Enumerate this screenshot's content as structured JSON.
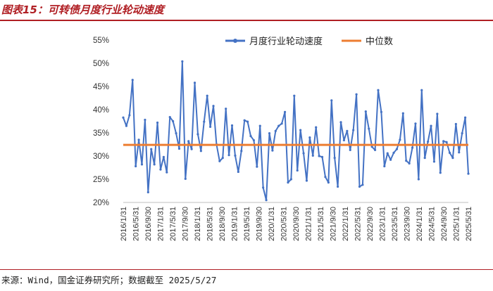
{
  "figure": {
    "title": "图表15：可转债月度行业轮动速度",
    "source": "来源：Wind，国金证券研究所；数据截至 2025/5/27"
  },
  "colors": {
    "series": "#4472c4",
    "median": "#ed7d31",
    "accent": "#b01f24"
  },
  "chart_data": {
    "type": "line",
    "title": "",
    "xlabel": "",
    "ylabel": "",
    "ylim": [
      20,
      55
    ],
    "y_ticks": [
      "55%",
      "50%",
      "45%",
      "40%",
      "35%",
      "30%",
      "25%",
      "20%"
    ],
    "y_tick_values": [
      55,
      50,
      45,
      40,
      35,
      30,
      25,
      20
    ],
    "x_tick_labels": [
      "2016/1/31",
      "2016/5/31",
      "2016/9/30",
      "2017/1/31",
      "2017/5/31",
      "2017/9/30",
      "2018/1/31",
      "2018/5/31",
      "2018/9/30",
      "2019/1/31",
      "2019/5/31",
      "2019/9/30",
      "2020/1/31",
      "2020/5/31",
      "2020/9/30",
      "2021/1/31",
      "2021/5/31",
      "2021/9/30",
      "2022/1/31",
      "2022/5/31",
      "2022/9/30",
      "2023/1/31",
      "2023/5/31",
      "2023/9/30",
      "2024/1/31",
      "2024/5/31",
      "2024/9/30",
      "2025/1/31",
      "2025/5/31"
    ],
    "grid": false,
    "legend": "top",
    "series": [
      {
        "name": "月度行业轮动速度",
        "color": "#4472c4",
        "values": [
          38.3,
          36.5,
          38.8,
          46.4,
          27.8,
          33.5,
          28.2,
          37.8,
          22.2,
          31.5,
          28.2,
          37.2,
          27.1,
          29.8,
          26.5,
          38.4,
          37.5,
          34.9,
          31.6,
          50.4,
          25.1,
          33.2,
          31.5,
          45.8,
          34.7,
          31.1,
          37.4,
          43.0,
          36.3,
          40.8,
          32.5,
          28.9,
          29.6,
          40.2,
          30.2,
          36.6,
          30.1,
          26.6,
          31.1,
          37.7,
          37.4,
          34.3,
          33.4,
          27.7,
          36.5,
          23.2,
          20.5,
          34.9,
          31.2,
          35.4,
          36.5,
          37.0,
          39.5,
          24.3,
          25.0,
          43.0,
          26.9,
          35.6,
          30.6,
          24.7,
          34.0,
          30.1,
          36.2,
          30.0,
          29.8,
          25.5,
          24.3,
          42.0,
          29.6,
          23.4,
          37.3,
          33.4,
          35.4,
          31.3,
          35.6,
          43.3,
          23.4,
          23.8,
          39.6,
          35.9,
          32.0,
          31.3,
          44.2,
          39.5,
          27.8,
          30.6,
          29.2,
          30.7,
          31.5,
          33.5,
          39.2,
          29.0,
          28.4,
          31.8,
          37.0,
          25.0,
          44.2,
          29.6,
          33.1,
          36.5,
          28.8,
          39.1,
          26.4,
          33.2,
          33.0,
          30.7,
          29.6,
          36.9,
          30.8,
          34.9,
          38.3,
          26.2
        ]
      },
      {
        "name": "中位数",
        "color": "#ed7d31",
        "value": 32.4
      }
    ]
  }
}
